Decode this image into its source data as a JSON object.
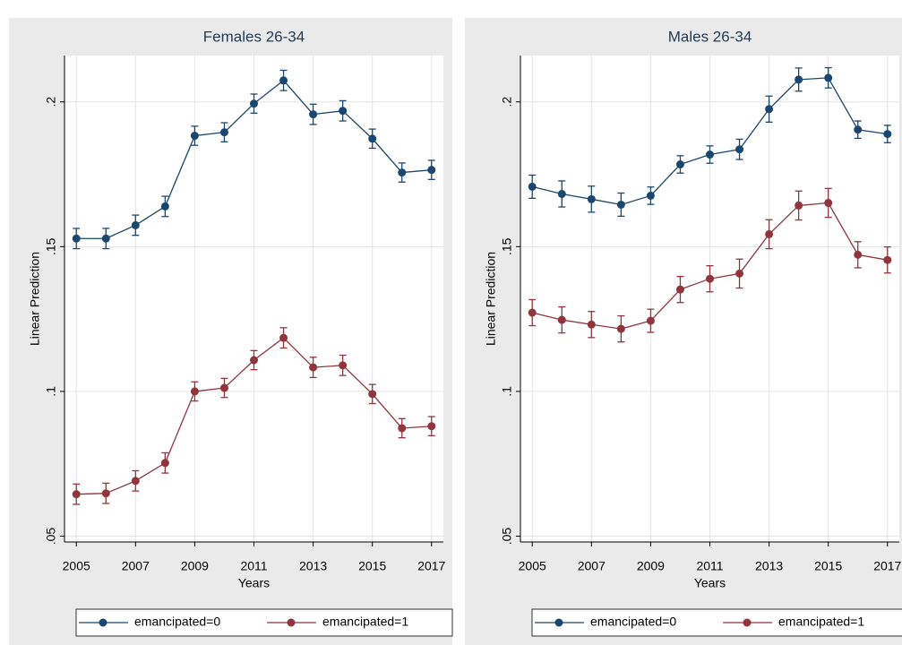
{
  "chart_data": [
    {
      "type": "line",
      "title": "Females 26-34",
      "xlabel": "Years",
      "ylabel": "Linear Prediction",
      "x": [
        2005,
        2006,
        2007,
        2008,
        2009,
        2010,
        2011,
        2012,
        2013,
        2014,
        2015,
        2016,
        2017
      ],
      "xlim": [
        2004.6,
        2017.4
      ],
      "xticks": [
        2005,
        2007,
        2009,
        2011,
        2013,
        2015,
        2017
      ],
      "ylim": [
        0.048,
        0.216
      ],
      "yticks": [
        {
          "value": 0.05,
          "label": ".05"
        },
        {
          "value": 0.1,
          "label": ".1"
        },
        {
          "value": 0.15,
          "label": ".15"
        },
        {
          "value": 0.2,
          "label": ".2"
        }
      ],
      "grid": true,
      "legend": "bottom",
      "series": [
        {
          "name": "emancipated=0",
          "color": "#1a476f",
          "values": [
            0.1528,
            0.1528,
            0.1574,
            0.1639,
            0.1883,
            0.1895,
            0.1994,
            0.2074,
            0.1957,
            0.1969,
            0.1873,
            0.1756,
            0.1765
          ],
          "errors": [
            0.0035,
            0.0035,
            0.0035,
            0.0035,
            0.0033,
            0.0033,
            0.0033,
            0.0035,
            0.0035,
            0.0035,
            0.0033,
            0.0033,
            0.0033
          ]
        },
        {
          "name": "emancipated=1",
          "color": "#90353b",
          "values": [
            0.0645,
            0.0648,
            0.0691,
            0.0753,
            0.1,
            0.1012,
            0.1108,
            0.1185,
            0.1083,
            0.109,
            0.0991,
            0.0873,
            0.088
          ],
          "errors": [
            0.0035,
            0.0035,
            0.0035,
            0.0035,
            0.0033,
            0.0033,
            0.0033,
            0.0035,
            0.0035,
            0.0035,
            0.0033,
            0.0033,
            0.0033
          ]
        }
      ]
    },
    {
      "type": "line",
      "title": "Males 26-34",
      "xlabel": "Years",
      "ylabel": "Linear Prediction",
      "x": [
        2005,
        2006,
        2007,
        2008,
        2009,
        2010,
        2011,
        2012,
        2013,
        2014,
        2015,
        2016,
        2017
      ],
      "xlim": [
        2004.6,
        2017.4
      ],
      "xticks": [
        2005,
        2007,
        2009,
        2011,
        2013,
        2015,
        2017
      ],
      "ylim": [
        0.048,
        0.216
      ],
      "yticks": [
        {
          "value": 0.05,
          "label": ".05"
        },
        {
          "value": 0.1,
          "label": ".1"
        },
        {
          "value": 0.15,
          "label": ".15"
        },
        {
          "value": 0.2,
          "label": ".2"
        }
      ],
      "grid": true,
      "legend": "bottom",
      "series": [
        {
          "name": "emancipated=0",
          "color": "#1a476f",
          "values": [
            0.1707,
            0.1682,
            0.1664,
            0.1645,
            0.1676,
            0.1784,
            0.1818,
            0.1836,
            0.1975,
            0.2077,
            0.2083,
            0.1904,
            0.1889
          ],
          "errors": [
            0.004,
            0.0045,
            0.0045,
            0.004,
            0.003,
            0.003,
            0.003,
            0.0035,
            0.0045,
            0.004,
            0.0035,
            0.003,
            0.003
          ]
        },
        {
          "name": "emancipated=1",
          "color": "#90353b",
          "values": [
            0.1272,
            0.1247,
            0.1231,
            0.1216,
            0.1244,
            0.1352,
            0.1389,
            0.1407,
            0.1543,
            0.1642,
            0.1651,
            0.1472,
            0.1454
          ],
          "errors": [
            0.0045,
            0.0045,
            0.0045,
            0.0045,
            0.004,
            0.0045,
            0.0045,
            0.005,
            0.005,
            0.005,
            0.005,
            0.0045,
            0.0045
          ]
        }
      ]
    }
  ]
}
